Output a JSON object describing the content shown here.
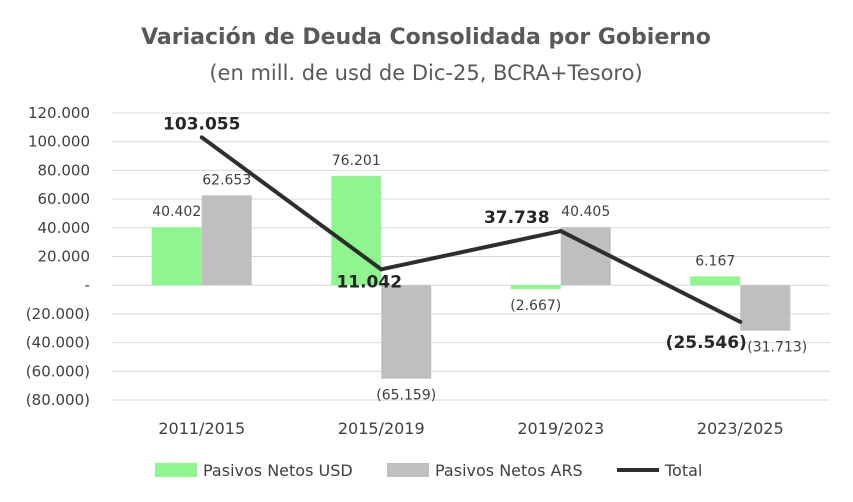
{
  "chart_data": {
    "type": "bar",
    "title": "Variación de Deuda Consolidada por Gobierno",
    "subtitle": "(en mill. de usd de Dic-25, BCRA+Tesoro)",
    "categories": [
      "2011/2015",
      "2015/2019",
      "2019/2023",
      "2023/2025"
    ],
    "ylim": [
      -80000,
      120000
    ],
    "yticks": [
      120000,
      100000,
      80000,
      60000,
      40000,
      20000,
      0,
      -20000,
      -40000,
      -60000,
      -80000
    ],
    "ytick_labels": [
      "120.000",
      "100.000",
      "80.000",
      "60.000",
      "40.000",
      "20.000",
      "-",
      "(20.000)",
      "(40.000)",
      "(60.000)",
      "(80.000)"
    ],
    "grid": true,
    "legend_position": "bottom",
    "series": [
      {
        "name": "Pasivos Netos USD",
        "kind": "bar",
        "color": "#8ef58f",
        "values": [
          40402,
          76201,
          -2667,
          6167
        ],
        "labels": [
          "40.402",
          "76.201",
          "(2.667)",
          "6.167"
        ]
      },
      {
        "name": "Pasivos Netos ARS",
        "kind": "bar",
        "color": "#bfbfbf",
        "values": [
          62653,
          -65159,
          40405,
          -31713
        ],
        "labels": [
          "62.653",
          "(65.159)",
          "40.405",
          "(31.713)"
        ]
      },
      {
        "name": "Total",
        "kind": "line",
        "color": "#2e2e2e",
        "values": [
          103055,
          11042,
          37738,
          -25546
        ],
        "labels": [
          "103.055",
          "11.042",
          "37.738",
          "(25.546)"
        ]
      }
    ]
  }
}
